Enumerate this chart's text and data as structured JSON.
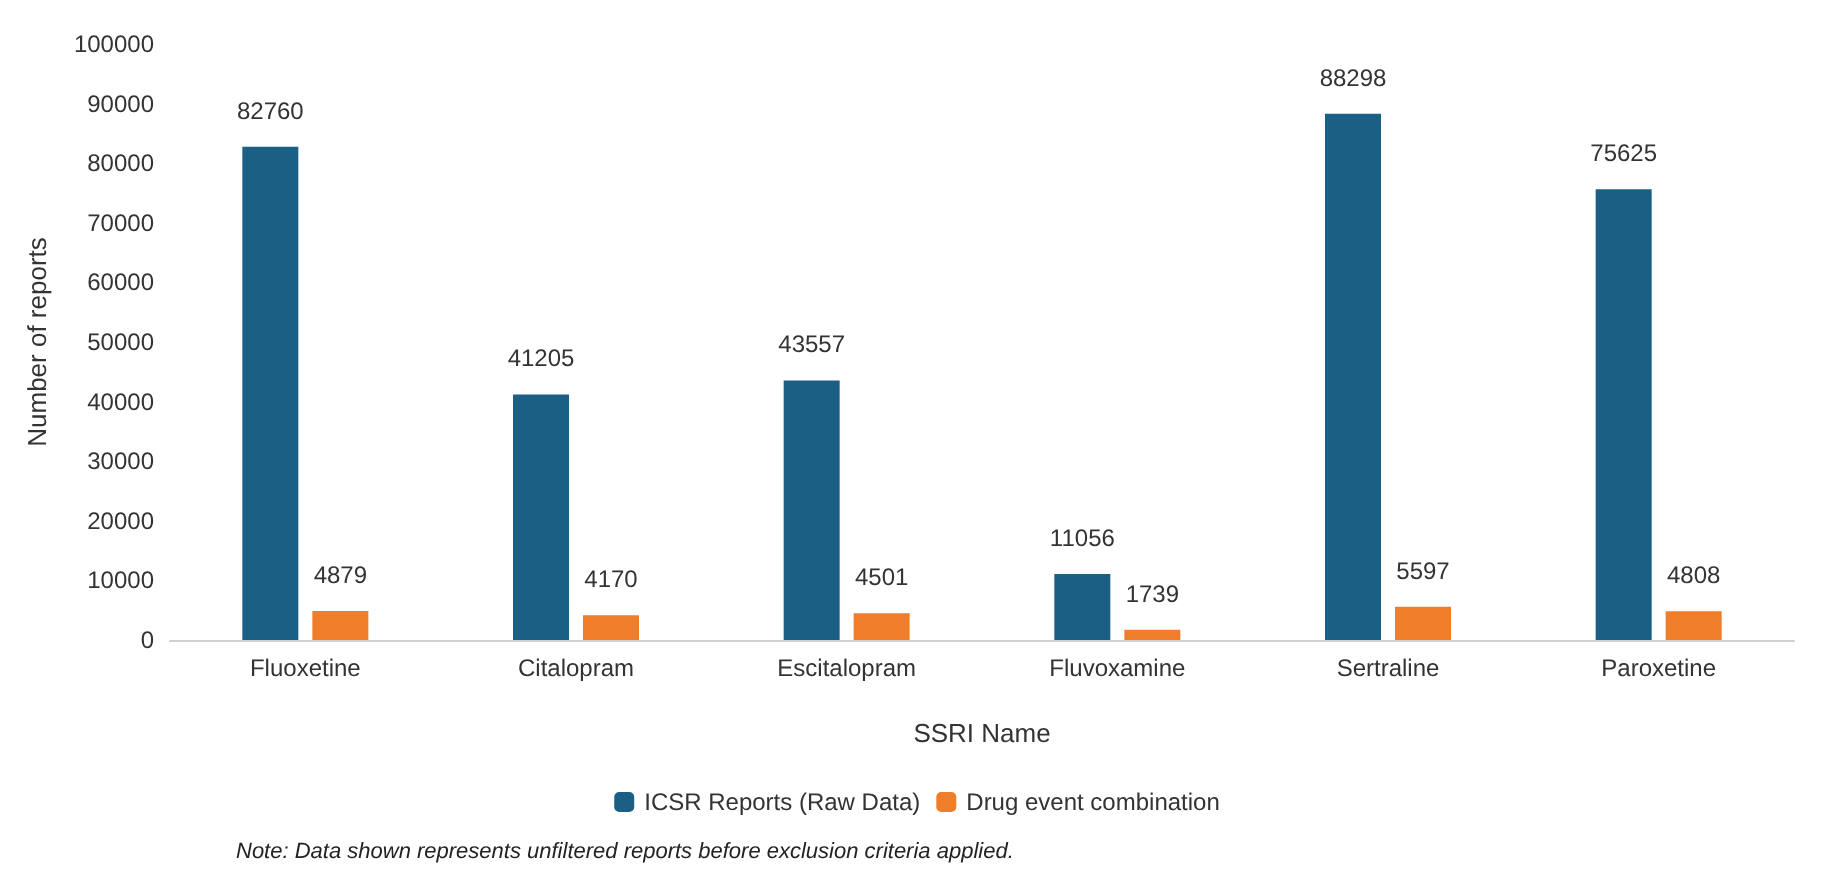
{
  "chart_data": {
    "type": "bar",
    "xlabel": "SSRI Name",
    "ylabel": "Number of reports",
    "categories": [
      "Fluoxetine",
      "Citalopram",
      "Escitalopram",
      "Fluvoxamine",
      "Sertraline",
      "Paroxetine"
    ],
    "series": [
      {
        "name": "ICSR Reports (Raw Data)",
        "color": "#1b5f85",
        "values": [
          82760,
          41205,
          43557,
          11056,
          88298,
          75625
        ]
      },
      {
        "name": "Drug event combination",
        "color": "#f07d2a",
        "values": [
          4879,
          4170,
          4501,
          1739,
          5597,
          4808
        ]
      }
    ],
    "ylim": [
      0,
      100000
    ],
    "yticks": [
      0,
      10000,
      20000,
      30000,
      40000,
      50000,
      60000,
      70000,
      80000,
      90000,
      100000
    ],
    "grid": false,
    "legend": "bottom",
    "data_labels": true,
    "annotations": [
      "Note: Data shown represents unfiltered reports before exclusion criteria applied."
    ]
  }
}
